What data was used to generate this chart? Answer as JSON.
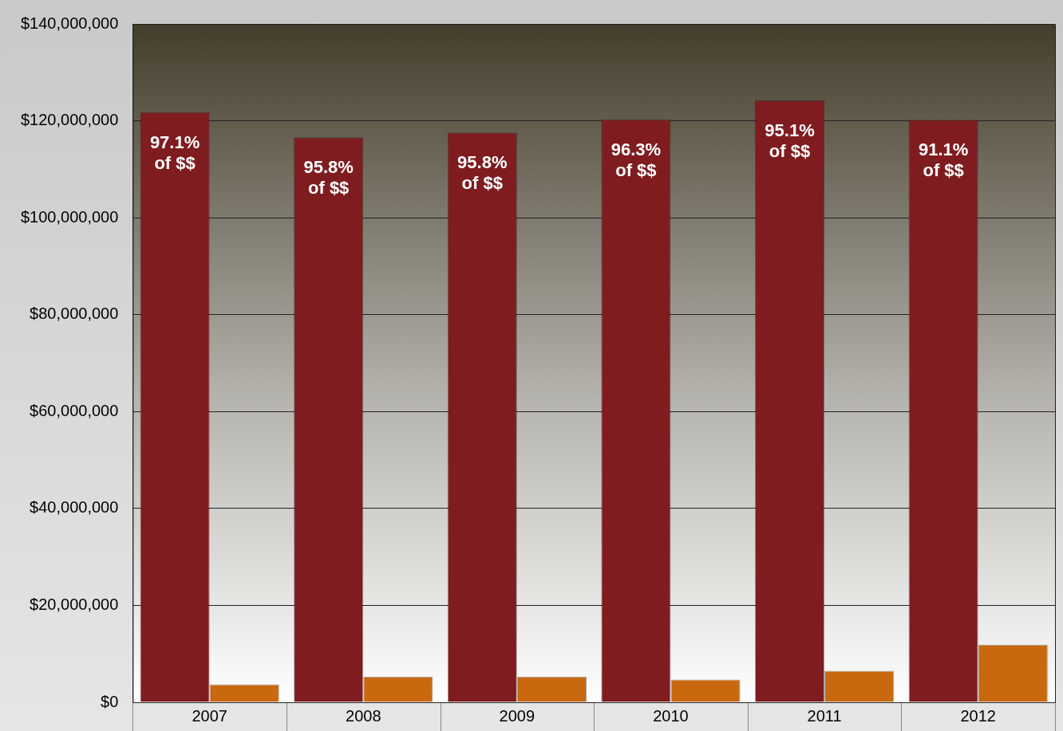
{
  "chart_data": {
    "type": "bar",
    "categories": [
      "2007",
      "2008",
      "2009",
      "2010",
      "2011",
      "2012"
    ],
    "series": [
      {
        "color": "#7f1c1f",
        "values": [
          121800000,
          116600000,
          117600000,
          120300000,
          124200000,
          120200000
        ]
      },
      {
        "color": "#c8680f",
        "values": [
          3700000,
          5300000,
          5300000,
          4700000,
          6500000,
          11900000
        ]
      }
    ],
    "annotations": [
      {
        "text": "97.1% of $$",
        "x": "2007",
        "y": 121800000
      },
      {
        "text": "95.8% of $$",
        "x": "2008",
        "y": 116600000
      },
      {
        "text": "95.8% of $$",
        "x": "2009",
        "y": 117600000
      },
      {
        "text": "96.3% of $$",
        "x": "2010",
        "y": 120300000
      },
      {
        "text": "95.1% of $$",
        "x": "2011",
        "y": 124200000
      },
      {
        "text": "91.1% of $$",
        "x": "2012",
        "y": 120200000
      }
    ],
    "ylim": [
      0,
      140000000
    ],
    "yticks": [
      {
        "value": 0,
        "label": "$0"
      },
      {
        "value": 20000000,
        "label": "$20,000,000"
      },
      {
        "value": 40000000,
        "label": "$40,000,000"
      },
      {
        "value": 60000000,
        "label": "$60,000,000"
      },
      {
        "value": 80000000,
        "label": "$80,000,000"
      },
      {
        "value": 100000000,
        "label": "$100,000,000"
      },
      {
        "value": 120000000,
        "label": "$120,000,000"
      },
      {
        "value": 140000000,
        "label": "$140,000,000"
      }
    ],
    "grid": "y",
    "legend": false
  }
}
